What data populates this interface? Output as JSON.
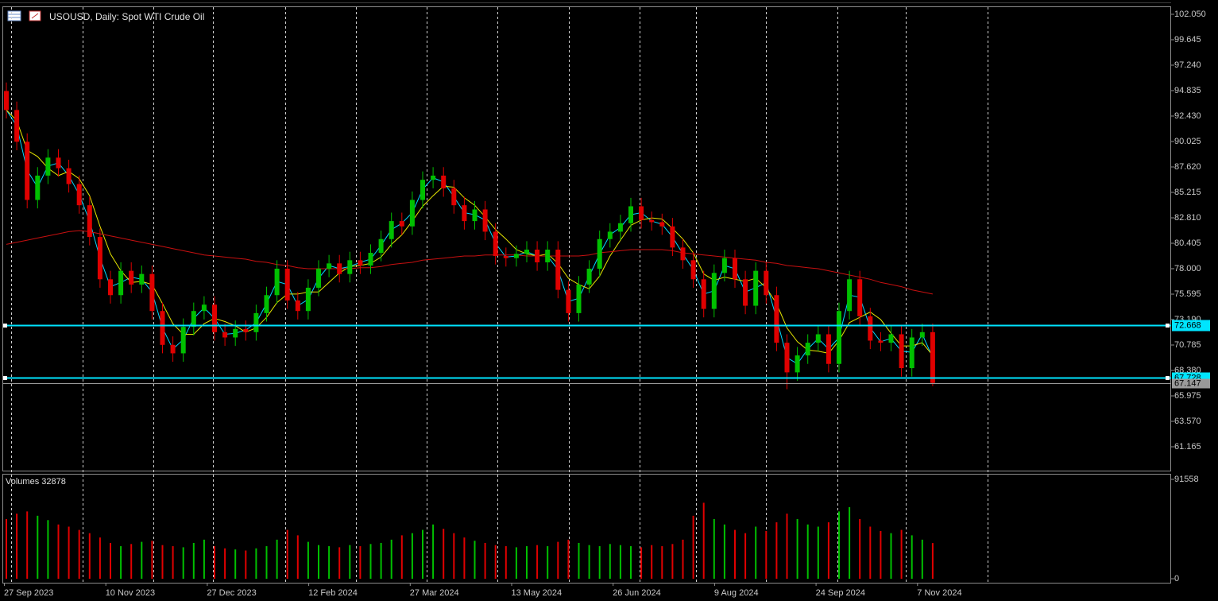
{
  "chart_data": {
    "type": "candlestick",
    "title": "USOUSD, Daily:  Spot WTI Crude Oil",
    "open": [
      94.8,
      93,
      90,
      84.5,
      86.8,
      88.5,
      87.5,
      86,
      84,
      81,
      77,
      75.5,
      77.8,
      76.5,
      77.5,
      74,
      70.8,
      70,
      72.5,
      74,
      74.6,
      72,
      71.5,
      72.3,
      72,
      73.8,
      75.5,
      78,
      75,
      74,
      76.2,
      78,
      78.5,
      77.5,
      78.8,
      78.3,
      79.5,
      80.8,
      82.5,
      82,
      84.5,
      86.4,
      86.8,
      85.6,
      84,
      82.5,
      83.6,
      81.5,
      79.2,
      79,
      79.4,
      79.8,
      78.6,
      79.8,
      76,
      73.8,
      76.5,
      78,
      80.8,
      81.5,
      82.3,
      83.9,
      82.6,
      82.4,
      82,
      80,
      78.8,
      77,
      74.2,
      77.6,
      79,
      77,
      74.5,
      77.8,
      75.5,
      71,
      68.2,
      69.8,
      71,
      71.8,
      69,
      74,
      77,
      73.5,
      71.2,
      71,
      71.8,
      68.6,
      71.5,
      72
    ],
    "high": [
      95.6,
      93.8,
      90.8,
      87.6,
      89.3,
      89.3,
      88.3,
      86.8,
      84.8,
      81.8,
      77.8,
      78.6,
      78.6,
      78.3,
      78.3,
      74.8,
      71.6,
      73.3,
      74.8,
      75.4,
      75.4,
      72.8,
      73.1,
      73.1,
      74.6,
      76.3,
      78.8,
      78.8,
      75.8,
      77.0,
      78.8,
      79.3,
      79.3,
      79.6,
      79.6,
      80.3,
      81.6,
      83.3,
      83.3,
      85.3,
      87.2,
      87.6,
      87.6,
      86.4,
      84.8,
      84.4,
      84.4,
      82.3,
      80.0,
      80.2,
      80.6,
      80.6,
      80.6,
      80.6,
      76.8,
      77.3,
      78.8,
      81.6,
      82.3,
      83.1,
      84.7,
      84.7,
      83.4,
      83.2,
      82.8,
      80.8,
      79.6,
      77.8,
      78.4,
      79.8,
      79.8,
      77.8,
      78.6,
      78.6,
      76.3,
      71.8,
      70.6,
      71.8,
      72.6,
      72.6,
      74.8,
      77.8,
      77.8,
      74.3,
      72.0,
      72.6,
      72.6,
      72.3,
      72.8,
      72.8
    ],
    "low": [
      92.2,
      89.2,
      83.7,
      83.7,
      86.0,
      86.7,
      85.2,
      83.2,
      80.2,
      76.2,
      74.7,
      74.7,
      75.7,
      75.7,
      73.2,
      70.0,
      69.2,
      69.2,
      71.7,
      73.2,
      71.2,
      70.7,
      70.7,
      71.2,
      71.2,
      73.0,
      74.7,
      74.2,
      73.2,
      73.2,
      75.4,
      77.2,
      76.7,
      76.7,
      77.5,
      77.5,
      78.7,
      80.0,
      81.2,
      81.2,
      83.7,
      85.6,
      84.8,
      83.2,
      81.7,
      81.7,
      80.7,
      78.4,
      78.2,
      78.2,
      78.6,
      77.8,
      77.8,
      75.2,
      73.0,
      73.0,
      75.7,
      77.2,
      80.0,
      80.7,
      81.5,
      81.8,
      81.6,
      81.2,
      79.2,
      78.0,
      76.2,
      73.4,
      73.4,
      76.8,
      76.2,
      73.7,
      73.7,
      74.7,
      70.2,
      66.6,
      67.4,
      69.0,
      70.2,
      68.2,
      68.2,
      73.2,
      72.7,
      70.4,
      70.2,
      70.2,
      67.8,
      67.8,
      70.7,
      66.9
    ],
    "close": [
      93,
      90,
      84.5,
      86.8,
      88.5,
      87.5,
      86,
      84,
      81,
      77,
      75.5,
      77.8,
      76.5,
      77.5,
      74,
      70.8,
      70,
      72.5,
      74,
      74.6,
      72,
      71.5,
      72.3,
      72,
      73.8,
      75.5,
      78,
      75,
      74,
      76.2,
      78,
      78.5,
      77.5,
      78.8,
      78.3,
      79.5,
      80.8,
      82.5,
      82,
      84.5,
      86.4,
      86.8,
      85.6,
      84,
      82.5,
      83.6,
      81.5,
      79.2,
      79,
      79.4,
      79.8,
      78.6,
      79.8,
      76,
      73.8,
      76.5,
      78,
      80.8,
      81.5,
      82.3,
      83.9,
      82.6,
      82.4,
      82,
      80,
      78.8,
      77,
      74.2,
      77.6,
      79,
      77,
      74.5,
      77.8,
      75.5,
      71,
      68.2,
      69.8,
      71,
      71.8,
      69,
      74,
      77,
      73.5,
      71.2,
      71,
      71.8,
      68.6,
      71.5,
      72,
      67.2
    ],
    "up_color": "#00c000",
    "down_color": "#e00000",
    "lines": [
      {
        "color": "#00d8ff",
        "values": [
          93.0,
          91.5,
          87.3,
          85.7,
          87.7,
          88.0,
          86.8,
          85.0,
          82.5,
          79.0,
          76.3,
          76.7,
          77.2,
          77.0,
          75.8,
          72.4,
          70.4,
          71.3,
          73.3,
          74.3,
          73.3,
          71.8,
          71.9,
          72.2,
          72.9,
          74.7,
          76.8,
          76.5,
          74.5,
          75.1,
          77.1,
          78.3,
          78.0,
          78.2,
          78.6,
          78.9,
          80.2,
          81.7,
          82.3,
          83.3,
          85.5,
          86.6,
          86.2,
          84.8,
          83.3,
          83.1,
          82.6,
          80.4,
          79.1,
          79.2,
          79.6,
          79.2,
          79.2,
          77.9,
          74.9,
          75.2,
          77.3,
          79.4,
          81.2,
          81.9,
          83.1,
          83.3,
          82.5,
          82.2,
          81.0,
          79.4,
          77.9,
          75.6,
          75.9,
          78.3,
          78.0,
          75.8,
          76.2,
          76.7,
          73.3,
          69.6,
          69.0,
          70.4,
          71.4,
          70.4,
          71.5,
          75.5,
          75.3,
          72.4,
          71.1,
          71.4,
          70.2,
          70.1,
          71.8,
          69.6
        ]
      },
      {
        "color": "#e6e600",
        "values": [
          93.0,
          92.0,
          89.2,
          88.6,
          87.5,
          86.8,
          87.2,
          86.5,
          84.9,
          82.0,
          79.4,
          77.8,
          76.7,
          76.8,
          76.5,
          74.7,
          72.8,
          71.8,
          71.8,
          72.8,
          73.3,
          73.0,
          72.6,
          72.0,
          72.4,
          73.4,
          74.8,
          75.6,
          75.6,
          75.8,
          75.8,
          76.7,
          77.6,
          78.2,
          78.3,
          78.5,
          79.1,
          80.3,
          81.2,
          82.5,
          83.9,
          84.9,
          85.8,
          85.7,
          84.7,
          84.0,
          82.9,
          81.7,
          80.8,
          79.8,
          79.4,
          79.2,
          79.4,
          78.5,
          77.1,
          76.5,
          76.1,
          77.3,
          79.2,
          80.7,
          82.1,
          82.6,
          82.8,
          82.7,
          81.8,
          80.8,
          79.5,
          77.5,
          76.9,
          77.2,
          77.0,
          76.8,
          77.1,
          76.2,
          74.7,
          72.4,
          71.1,
          70.3,
          70.2,
          70.0,
          71.2,
          72.9,
          73.4,
          73.9,
          73.2,
          71.9,
          70.7,
          70.7,
          71.0,
          69.8
        ]
      },
      {
        "color": "#c81010",
        "values": [
          80.3,
          80.5,
          80.7,
          80.9,
          81.1,
          81.3,
          81.5,
          81.6,
          81.5,
          81.3,
          81.1,
          80.9,
          80.7,
          80.5,
          80.3,
          80.1,
          79.9,
          79.7,
          79.5,
          79.3,
          79.2,
          79.1,
          79.0,
          78.9,
          78.7,
          78.6,
          78.4,
          78.3,
          78.1,
          78.0,
          78.0,
          78.0,
          78.0,
          78.0,
          78.1,
          78.1,
          78.2,
          78.4,
          78.5,
          78.6,
          78.8,
          78.9,
          79.0,
          79.1,
          79.2,
          79.2,
          79.3,
          79.3,
          79.3,
          79.3,
          79.2,
          79.2,
          79.2,
          79.2,
          79.2,
          79.2,
          79.3,
          79.5,
          79.6,
          79.7,
          79.8,
          79.8,
          79.8,
          79.8,
          79.7,
          79.5,
          79.4,
          79.3,
          79.2,
          79.1,
          79.0,
          78.9,
          78.8,
          78.6,
          78.5,
          78.3,
          78.2,
          78.1,
          78.0,
          77.8,
          77.6,
          77.4,
          77.2,
          77.0,
          76.7,
          76.5,
          76.3,
          76.0,
          75.8,
          75.6
        ]
      }
    ],
    "levels": [
      {
        "value": 72.668,
        "color": "#00e5ff"
      },
      {
        "value": 67.728,
        "color": "#00e5ff"
      }
    ],
    "last_price": {
      "value": 67.147,
      "color": "#9a9a9a"
    },
    "ylim": [
      58.91,
      102.8
    ],
    "yticks": [
      {
        "value": 102.05,
        "label": "102.050"
      },
      99.645,
      {
        "value": 97.24,
        "label": "97.240"
      },
      94.835,
      {
        "value": 92.43,
        "label": "92.430"
      },
      90.025,
      {
        "value": 87.62,
        "label": "87.620"
      },
      85.215,
      {
        "value": 82.81,
        "label": "82.810"
      },
      80.405,
      {
        "value": 78,
        "label": "78.000"
      },
      75.595,
      {
        "value": 73.19,
        "label": "73.190"
      },
      70.785,
      {
        "value": 68.38,
        "label": "68.380"
      },
      65.975,
      {
        "value": 63.57,
        "label": "63.570"
      },
      61.165
    ],
    "grid": true,
    "xtick_labels": [
      "27 Sep 2023",
      "10 Nov 2023",
      "27 Dec 2023",
      "12 Feb 2024",
      "27 Mar 2024",
      "13 May 2024",
      "26 Jun 2024",
      "9 Aug 2024",
      "24 Sep 2024",
      "7 Nov 2024"
    ],
    "volume": {
      "label": "Volumes",
      "values": [
        55000,
        60000,
        62000,
        58000,
        54000,
        50000,
        48000,
        45000,
        42000,
        38000,
        33000,
        30000,
        32000,
        34000,
        35000,
        31000,
        30000,
        29000,
        33000,
        36000,
        30000,
        28000,
        27000,
        26000,
        28000,
        30000,
        36000,
        45000,
        40000,
        34000,
        31000,
        30000,
        29000,
        31000,
        30000,
        32000,
        33000,
        36000,
        40000,
        42000,
        45000,
        50000,
        46000,
        42000,
        38000,
        35000,
        33000,
        31000,
        30000,
        29000,
        30000,
        31000,
        30000,
        34000,
        36000,
        33000,
        31000,
        30000,
        32000,
        31000,
        30000,
        29000,
        31000,
        30000,
        32000,
        36000,
        58000,
        70000,
        55000,
        50000,
        45000,
        42000,
        48000,
        44000,
        52000,
        60000,
        55000,
        50000,
        48000,
        52000,
        62000,
        66000,
        55000,
        48000,
        44000,
        42000,
        45000,
        40000,
        36000,
        32878
      ],
      "ylim": [
        0,
        91558
      ],
      "yticks": [
        91558,
        0
      ]
    }
  }
}
